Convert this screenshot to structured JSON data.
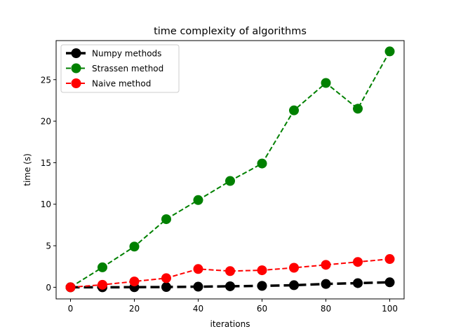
{
  "chart_data": {
    "type": "line",
    "title": "time complexity of algorithms",
    "xlabel": "iterations",
    "ylabel": "time (s)",
    "x": [
      0,
      10,
      20,
      30,
      40,
      50,
      60,
      70,
      80,
      90,
      100
    ],
    "xlim": [
      -4.5,
      104.5
    ],
    "ylim": [
      -1.4,
      29.7
    ],
    "xticks": [
      0,
      20,
      40,
      60,
      80,
      100
    ],
    "yticks": [
      0,
      5,
      10,
      15,
      20,
      25
    ],
    "grid": false,
    "legend_position": "top-left",
    "series": [
      {
        "name": "Numpy methods",
        "color": "#000000",
        "style": "dashed-thick",
        "values": [
          0.0,
          0.0,
          0.01,
          0.03,
          0.07,
          0.12,
          0.17,
          0.25,
          0.4,
          0.5,
          0.6
        ]
      },
      {
        "name": "Strassen method",
        "color": "#008000",
        "style": "dashed",
        "values": [
          0.0,
          2.4,
          4.9,
          8.2,
          10.5,
          12.8,
          14.9,
          21.3,
          24.6,
          21.5,
          28.4
        ]
      },
      {
        "name": "Naive method",
        "color": "#ff0000",
        "style": "dashed",
        "values": [
          0.0,
          0.3,
          0.7,
          1.1,
          2.2,
          1.95,
          2.05,
          2.35,
          2.7,
          3.05,
          3.4
        ]
      }
    ]
  }
}
